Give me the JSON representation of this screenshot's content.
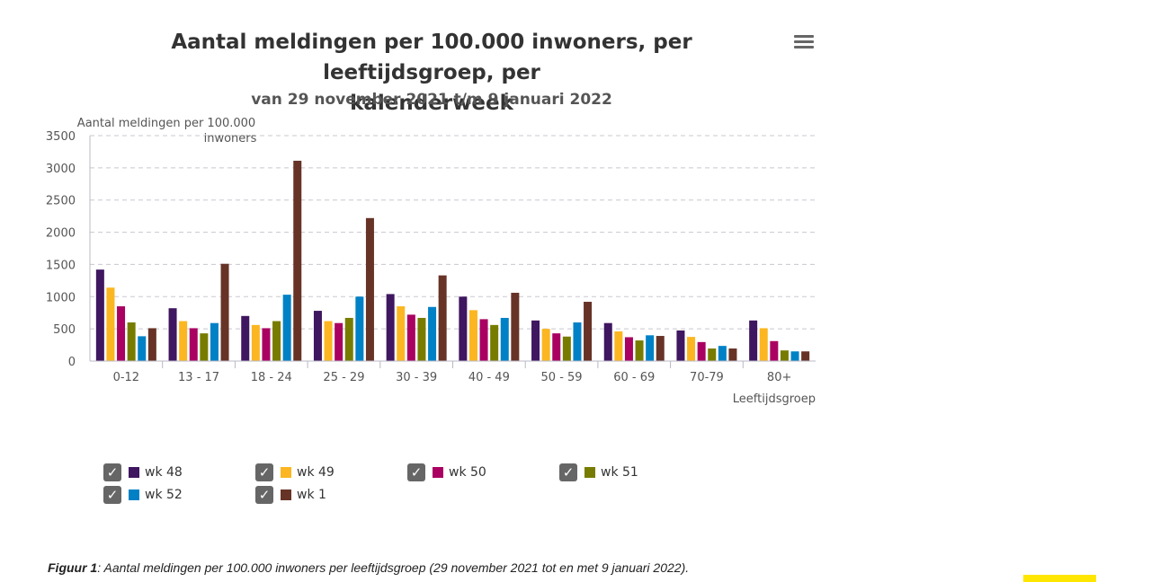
{
  "menu": {
    "icon": "hamburger-menu-icon"
  },
  "chart_data": {
    "type": "bar",
    "title": "Aantal meldingen per 100.000 inwoners, per leeftijdsgroep, per kalenderweek",
    "title_lines": [
      "Aantal meldingen per 100.000 inwoners, per leeftijdsgroep, per",
      "kalenderweek"
    ],
    "subtitle": "van 29 november 2021 t/m 9 januari 2022",
    "ylabel": "Aantal meldingen per 100.000",
    "ylabel_lines": [
      "Aantal meldingen per 100.000",
      "inwoners"
    ],
    "xlabel": "Leeftijdsgroep",
    "ylim": [
      0,
      3500
    ],
    "yticks": [
      0,
      500,
      1000,
      1500,
      2000,
      2500,
      3000,
      3500
    ],
    "grid": true,
    "legend_position": "bottom",
    "categories": [
      "0-12",
      "13 - 17",
      "18 - 24",
      "25 - 29",
      "30 - 39",
      "40 - 49",
      "50 - 59",
      "60 - 69",
      "70-79",
      "80+"
    ],
    "series": [
      {
        "name": "wk 48",
        "color": "#3f1660",
        "values": [
          1420,
          820,
          700,
          780,
          1040,
          1000,
          630,
          590,
          475,
          630
        ]
      },
      {
        "name": "wk 49",
        "color": "#fbb621",
        "values": [
          1140,
          620,
          560,
          620,
          850,
          790,
          500,
          460,
          375,
          510
        ]
      },
      {
        "name": "wk 50",
        "color": "#a90061",
        "values": [
          850,
          510,
          510,
          590,
          720,
          650,
          430,
          370,
          295,
          310
        ]
      },
      {
        "name": "wk 51",
        "color": "#777c00",
        "values": [
          600,
          430,
          620,
          670,
          670,
          560,
          380,
          320,
          195,
          165
        ]
      },
      {
        "name": "wk 52",
        "color": "#0081c6",
        "values": [
          385,
          590,
          1030,
          1000,
          840,
          670,
          600,
          400,
          235,
          150
        ]
      },
      {
        "name": "wk 1",
        "color": "#673327",
        "values": [
          510,
          1510,
          3110,
          2220,
          1330,
          1060,
          920,
          390,
          195,
          150
        ]
      }
    ]
  },
  "legend": {
    "check_icon": "checkbox-checked-icon",
    "check_glyph": "✓"
  },
  "caption": {
    "label": "Figuur 1",
    "text": ": Aantal meldingen per 100.000 inwoners per leeftijdsgroep (29 november 2021 tot en met 9 januari 2022)."
  }
}
